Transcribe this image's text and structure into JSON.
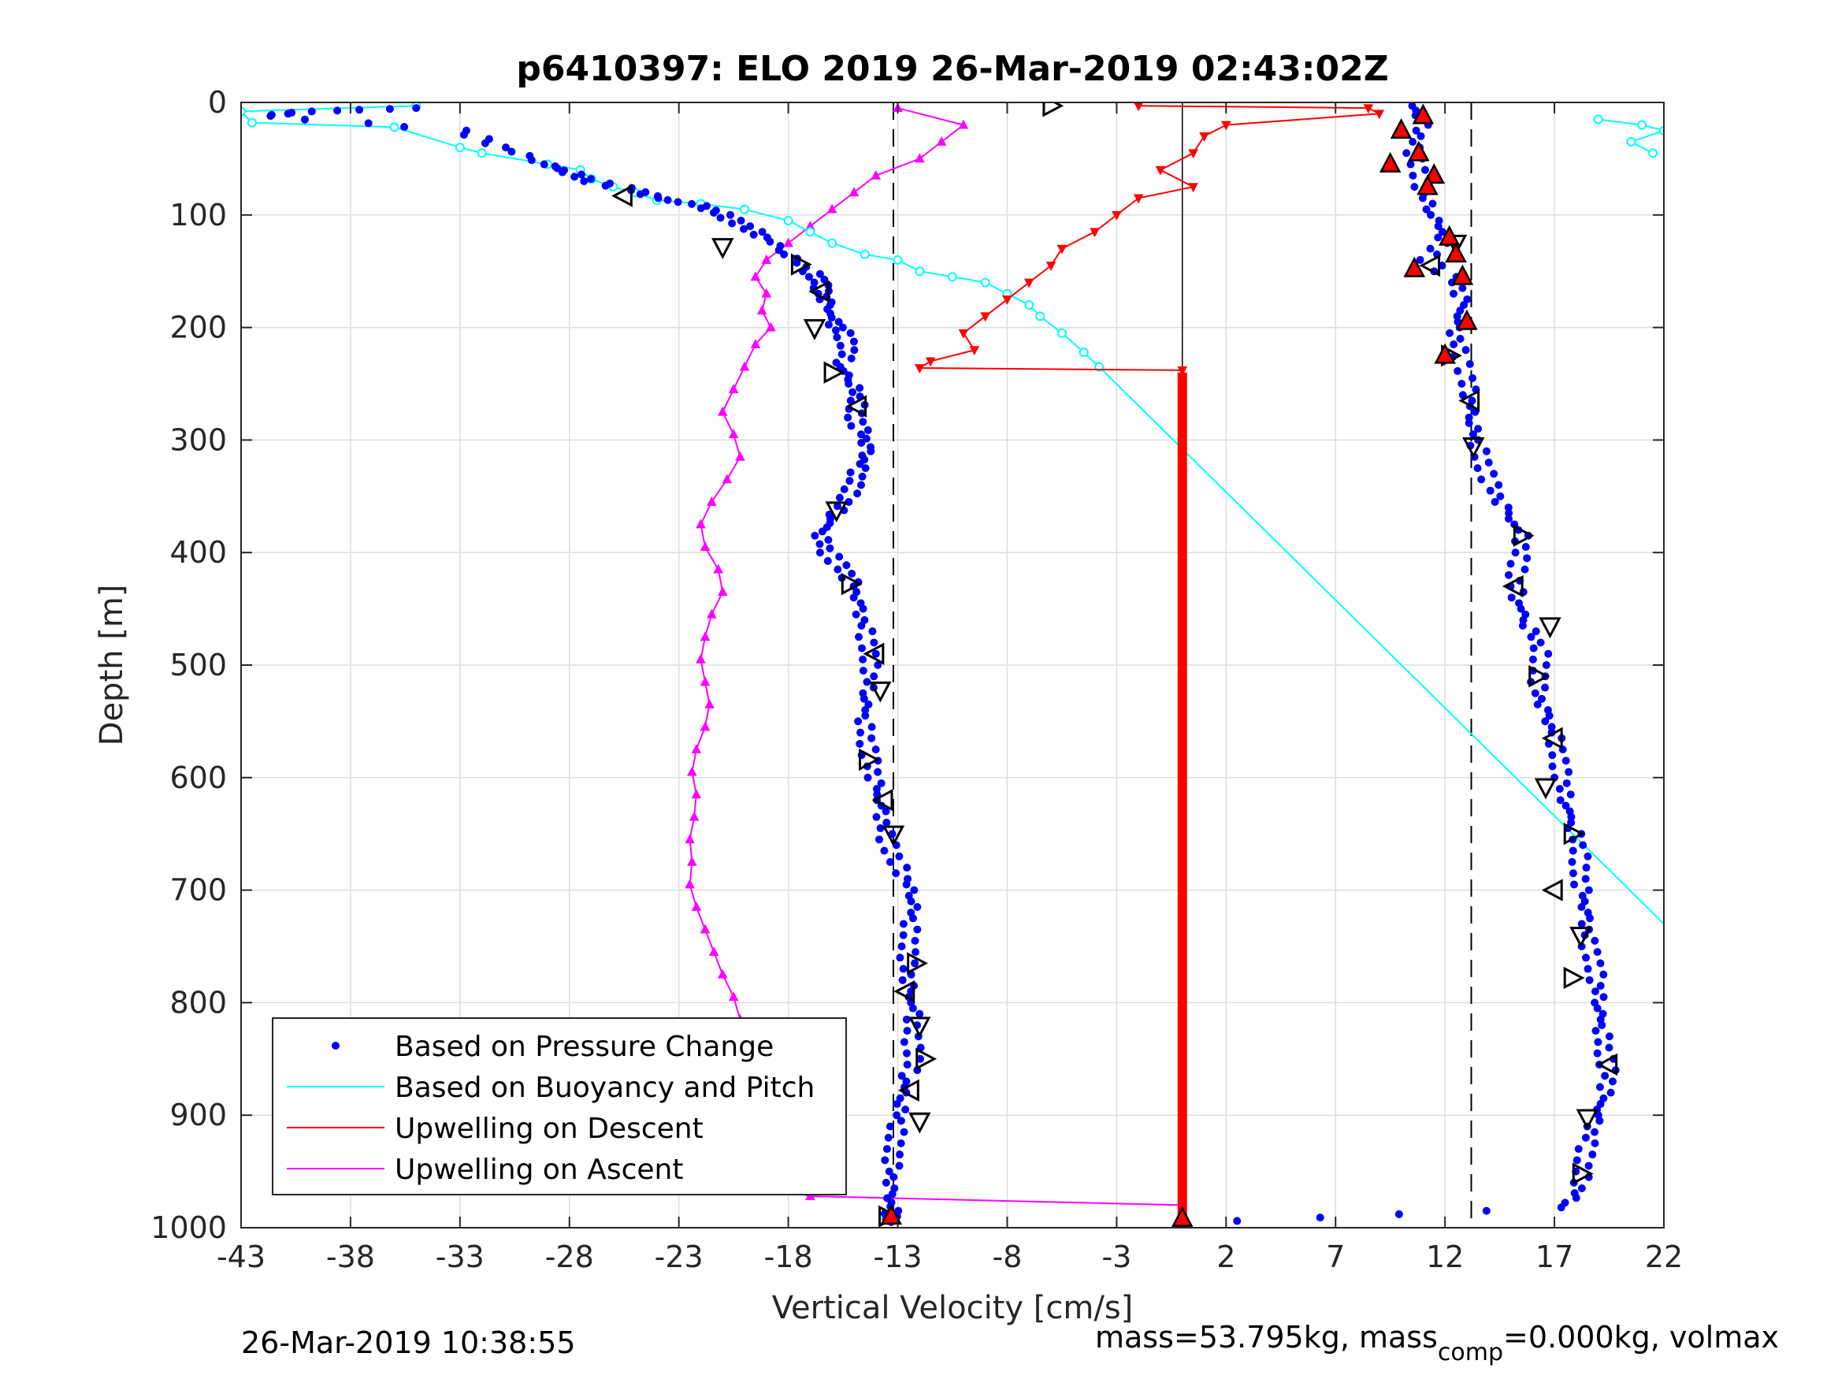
{
  "chart_data": {
    "type": "scatter",
    "title": "p6410397: ELO 2019 26-Mar-2019 02:43:02Z",
    "xlabel": "Vertical Velocity [cm/s]",
    "ylabel": "Depth [m]",
    "xlim": [
      -43,
      22
    ],
    "ylim": [
      0,
      1000
    ],
    "y_reversed": true,
    "grid": true,
    "x_ticks": [
      "-43",
      "-38",
      "-33",
      "-28",
      "-23",
      "-18",
      "-13",
      "-8",
      "-3",
      "2",
      "7",
      "12",
      "17",
      "22"
    ],
    "y_ticks": [
      "0",
      "100",
      "200",
      "300",
      "400",
      "500",
      "600",
      "700",
      "800",
      "900",
      "1000"
    ],
    "legend_position": "bottom-left",
    "reference_lines": {
      "dashed_x": [
        -13.2,
        13.2
      ],
      "solid_x": [
        0
      ]
    },
    "series": [
      {
        "name": "Based on Pressure Change",
        "color": "#0000ff",
        "marker": "dot",
        "descent": [
          [
            -35,
            5
          ],
          [
            -40,
            8
          ],
          [
            -42,
            12
          ],
          [
            -33,
            25
          ],
          [
            -31,
            40
          ],
          [
            -29,
            55
          ],
          [
            -28,
            62
          ],
          [
            -27,
            70
          ],
          [
            -25,
            78
          ],
          [
            -24,
            85
          ],
          [
            -22,
            92
          ],
          [
            -21,
            100
          ],
          [
            -20,
            110
          ],
          [
            -19,
            120
          ],
          [
            -18,
            135
          ],
          [
            -17,
            150
          ],
          [
            -16.5,
            160
          ],
          [
            -16.5,
            170
          ],
          [
            -16.2,
            180
          ],
          [
            -16,
            195
          ],
          [
            -15.5,
            205
          ],
          [
            -15.2,
            220
          ],
          [
            -15.6,
            235
          ],
          [
            -15,
            250
          ],
          [
            -14.8,
            265
          ],
          [
            -15,
            280
          ],
          [
            -14.6,
            295
          ],
          [
            -14.4,
            310
          ],
          [
            -14.8,
            325
          ],
          [
            -15,
            340
          ],
          [
            -15.4,
            355
          ],
          [
            -16,
            370
          ],
          [
            -16.5,
            385
          ],
          [
            -16.2,
            400
          ],
          [
            -15.5,
            415
          ],
          [
            -15,
            430
          ],
          [
            -14.8,
            450
          ],
          [
            -14.5,
            470
          ],
          [
            -14.3,
            490
          ],
          [
            -14.2,
            510
          ],
          [
            -14.4,
            530
          ],
          [
            -14.5,
            550
          ],
          [
            -14.4,
            570
          ],
          [
            -14.2,
            590
          ],
          [
            -14,
            610
          ],
          [
            -13.8,
            630
          ],
          [
            -13.6,
            650
          ],
          [
            -13.2,
            670
          ],
          [
            -12.6,
            690
          ],
          [
            -12.2,
            710
          ],
          [
            -12.4,
            730
          ],
          [
            -12.5,
            750
          ],
          [
            -12.6,
            770
          ],
          [
            -12.5,
            790
          ],
          [
            -12.3,
            810
          ],
          [
            -12.4,
            830
          ],
          [
            -12.2,
            850
          ],
          [
            -12.6,
            870
          ],
          [
            -12.8,
            890
          ],
          [
            -13,
            910
          ],
          [
            -13.2,
            930
          ],
          [
            -13.3,
            950
          ],
          [
            -13.4,
            970
          ],
          [
            -13.3,
            985
          ],
          [
            -13.3,
            995
          ]
        ],
        "ascent": [
          [
            10.5,
            3
          ],
          [
            11,
            20
          ],
          [
            10.5,
            40
          ],
          [
            10.8,
            60
          ],
          [
            11,
            80
          ],
          [
            11.5,
            100
          ],
          [
            12,
            120
          ],
          [
            11.2,
            140
          ],
          [
            12.5,
            160
          ],
          [
            12.8,
            180
          ],
          [
            12.4,
            200
          ],
          [
            12.6,
            220
          ],
          [
            13,
            245
          ],
          [
            13.2,
            265
          ],
          [
            13.3,
            285
          ],
          [
            13.5,
            305
          ],
          [
            13.8,
            325
          ],
          [
            14.2,
            345
          ],
          [
            14.8,
            365
          ],
          [
            15.5,
            385
          ],
          [
            15.4,
            405
          ],
          [
            15.2,
            425
          ],
          [
            15.4,
            445
          ],
          [
            15.8,
            465
          ],
          [
            16.4,
            485
          ],
          [
            16.3,
            505
          ],
          [
            16.2,
            525
          ],
          [
            16.6,
            545
          ],
          [
            17,
            565
          ],
          [
            17.2,
            585
          ],
          [
            17.4,
            605
          ],
          [
            17.6,
            625
          ],
          [
            17.9,
            645
          ],
          [
            18.2,
            665
          ],
          [
            18.1,
            685
          ],
          [
            18.3,
            705
          ],
          [
            18.4,
            725
          ],
          [
            18.5,
            745
          ],
          [
            18.8,
            765
          ],
          [
            19,
            785
          ],
          [
            19.1,
            805
          ],
          [
            19.2,
            825
          ],
          [
            19.3,
            845
          ],
          [
            19.5,
            865
          ],
          [
            19.2,
            885
          ],
          [
            18.8,
            905
          ],
          [
            18.5,
            925
          ],
          [
            18.3,
            945
          ],
          [
            18.2,
            965
          ],
          [
            17.5,
            982
          ],
          [
            2.5,
            994
          ]
        ]
      },
      {
        "name": "Based on Buoyancy and Pitch",
        "color": "#00ffff",
        "marker": "circle-line",
        "points": [
          [
            -35,
            3
          ],
          [
            -43,
            8
          ],
          [
            -42.5,
            18
          ],
          [
            -36,
            22
          ],
          [
            -33,
            40
          ],
          [
            -32,
            45
          ],
          [
            -29,
            55
          ],
          [
            -27.5,
            60
          ],
          [
            -27,
            68
          ],
          [
            -26,
            75
          ],
          [
            -25,
            80
          ],
          [
            -24,
            87
          ],
          [
            -22,
            90
          ],
          [
            -20,
            95
          ],
          [
            -18,
            105
          ],
          [
            -17,
            115
          ],
          [
            -16,
            125
          ],
          [
            -14.5,
            135
          ],
          [
            -13,
            140
          ],
          [
            -12,
            150
          ],
          [
            -10.5,
            155
          ],
          [
            -9,
            160
          ],
          [
            -8,
            170
          ],
          [
            -7,
            180
          ],
          [
            -6.5,
            190
          ],
          [
            -5.5,
            205
          ],
          [
            -4.5,
            222
          ],
          [
            -3.8,
            235
          ],
          [
            22,
            730
          ]
        ],
        "surface_points": [
          [
            19,
            15
          ],
          [
            21,
            20
          ],
          [
            22,
            25
          ],
          [
            20.5,
            35
          ],
          [
            21.5,
            45
          ]
        ]
      },
      {
        "name": "Upwelling on Descent",
        "color": "#ff0000",
        "marker": "triangle-down",
        "points": [
          [
            -2,
            3
          ],
          [
            8.5,
            5
          ],
          [
            9,
            10
          ],
          [
            2,
            20
          ],
          [
            1,
            30
          ],
          [
            0.5,
            45
          ],
          [
            -1,
            60
          ],
          [
            0.5,
            75
          ],
          [
            -2,
            85
          ],
          [
            -3,
            100
          ],
          [
            -4,
            115
          ],
          [
            -5.5,
            130
          ],
          [
            -6,
            145
          ],
          [
            -7,
            160
          ],
          [
            -8,
            175
          ],
          [
            -9,
            190
          ],
          [
            -10,
            205
          ],
          [
            -9.5,
            220
          ],
          [
            -11.5,
            230
          ],
          [
            -12,
            236
          ],
          [
            0,
            238
          ]
        ],
        "bottom_points": [
          [
            0,
            240
          ],
          [
            0,
            1000
          ]
        ]
      },
      {
        "name": "Upwelling on Ascent",
        "color": "#ff00ff",
        "marker": "triangle-up",
        "points": [
          [
            -13,
            5
          ],
          [
            -10,
            20
          ],
          [
            -11,
            35
          ],
          [
            -12,
            50
          ],
          [
            -14,
            65
          ],
          [
            -15,
            80
          ],
          [
            -16,
            95
          ],
          [
            -17,
            110
          ],
          [
            -18,
            125
          ],
          [
            -19,
            140
          ],
          [
            -19.5,
            155
          ],
          [
            -19,
            170
          ],
          [
            -19.2,
            185
          ],
          [
            -18.8,
            200
          ],
          [
            -19.5,
            215
          ],
          [
            -20,
            235
          ],
          [
            -20.5,
            255
          ],
          [
            -21,
            275
          ],
          [
            -20.5,
            295
          ],
          [
            -20.2,
            315
          ],
          [
            -20.8,
            335
          ],
          [
            -21.5,
            355
          ],
          [
            -22,
            375
          ],
          [
            -21.8,
            395
          ],
          [
            -21.2,
            415
          ],
          [
            -21,
            435
          ],
          [
            -21.5,
            455
          ],
          [
            -21.8,
            475
          ],
          [
            -22,
            495
          ],
          [
            -21.8,
            515
          ],
          [
            -21.6,
            535
          ],
          [
            -21.8,
            555
          ],
          [
            -22.2,
            575
          ],
          [
            -22.4,
            595
          ],
          [
            -22.2,
            615
          ],
          [
            -22.3,
            635
          ],
          [
            -22.5,
            655
          ],
          [
            -22.4,
            675
          ],
          [
            -22.5,
            695
          ],
          [
            -22.2,
            715
          ],
          [
            -21.8,
            735
          ],
          [
            -21.4,
            755
          ],
          [
            -21,
            775
          ],
          [
            -20.5,
            795
          ],
          [
            -20.2,
            815
          ],
          [
            -20.4,
            835
          ],
          [
            -20.8,
            855
          ],
          [
            -21.2,
            875
          ],
          [
            -21.5,
            895
          ],
          [
            -21.2,
            915
          ],
          [
            -20.8,
            935
          ],
          [
            -20.5,
            950
          ],
          [
            -19,
            962
          ],
          [
            -17,
            972
          ],
          [
            0,
            980
          ]
        ]
      }
    ],
    "markers": {
      "open_triangles_black": [
        [
          -6,
          3
        ],
        [
          -25.5,
          83
        ],
        [
          -21,
          128
        ],
        [
          -17.5,
          144
        ],
        [
          -16.5,
          168
        ],
        [
          -16.8,
          200
        ],
        [
          -16,
          240
        ],
        [
          -14.8,
          270
        ],
        [
          -15.8,
          362
        ],
        [
          -15.2,
          428
        ],
        [
          -14,
          490
        ],
        [
          -13.8,
          522
        ],
        [
          -14.4,
          584
        ],
        [
          -13.6,
          620
        ],
        [
          -13.2,
          650
        ],
        [
          -12.2,
          765
        ],
        [
          -12.6,
          790
        ],
        [
          -12,
          820
        ],
        [
          -11.8,
          850
        ],
        [
          -12.4,
          878
        ],
        [
          -12,
          905
        ],
        [
          -13.5,
          990
        ],
        [
          13.2,
          265
        ],
        [
          13.3,
          305
        ],
        [
          15.5,
          385
        ],
        [
          15.2,
          430
        ],
        [
          16.8,
          465
        ],
        [
          16.2,
          510
        ],
        [
          17,
          565
        ],
        [
          16.6,
          608
        ],
        [
          17.8,
          650
        ],
        [
          17,
          700
        ],
        [
          18.2,
          740
        ],
        [
          17.8,
          778
        ],
        [
          19.5,
          855
        ],
        [
          18.5,
          902
        ],
        [
          18.2,
          952
        ],
        [
          11.4,
          145
        ],
        [
          12.5,
          125
        ],
        [
          12.2,
          225
        ]
      ],
      "filled_triangles_red": [
        [
          11,
          12
        ],
        [
          10,
          25
        ],
        [
          10.8,
          45
        ],
        [
          9.5,
          55
        ],
        [
          11.5,
          65
        ],
        [
          11.2,
          75
        ],
        [
          12.2,
          120
        ],
        [
          12.5,
          135
        ],
        [
          12.8,
          155
        ],
        [
          10.6,
          148
        ],
        [
          13,
          195
        ],
        [
          12,
          225
        ],
        [
          -13.3,
          990
        ],
        [
          0,
          992
        ]
      ]
    },
    "legend": [
      {
        "label": "Based on Pressure Change",
        "color": "#0000ff",
        "style": "dot"
      },
      {
        "label": "Based on Buoyancy and Pitch",
        "color": "#00ffff",
        "style": "line"
      },
      {
        "label": "Upwelling on Descent",
        "color": "#ff0000",
        "style": "line"
      },
      {
        "label": "Upwelling on Ascent",
        "color": "#ff00ff",
        "style": "line"
      }
    ]
  },
  "footer": {
    "timestamp": "26-Mar-2019 10:38:55",
    "mass_text_1": "mass=53.795kg, mass",
    "mass_sub": "comp",
    "mass_text_2": "=0.000kg, volmax"
  }
}
